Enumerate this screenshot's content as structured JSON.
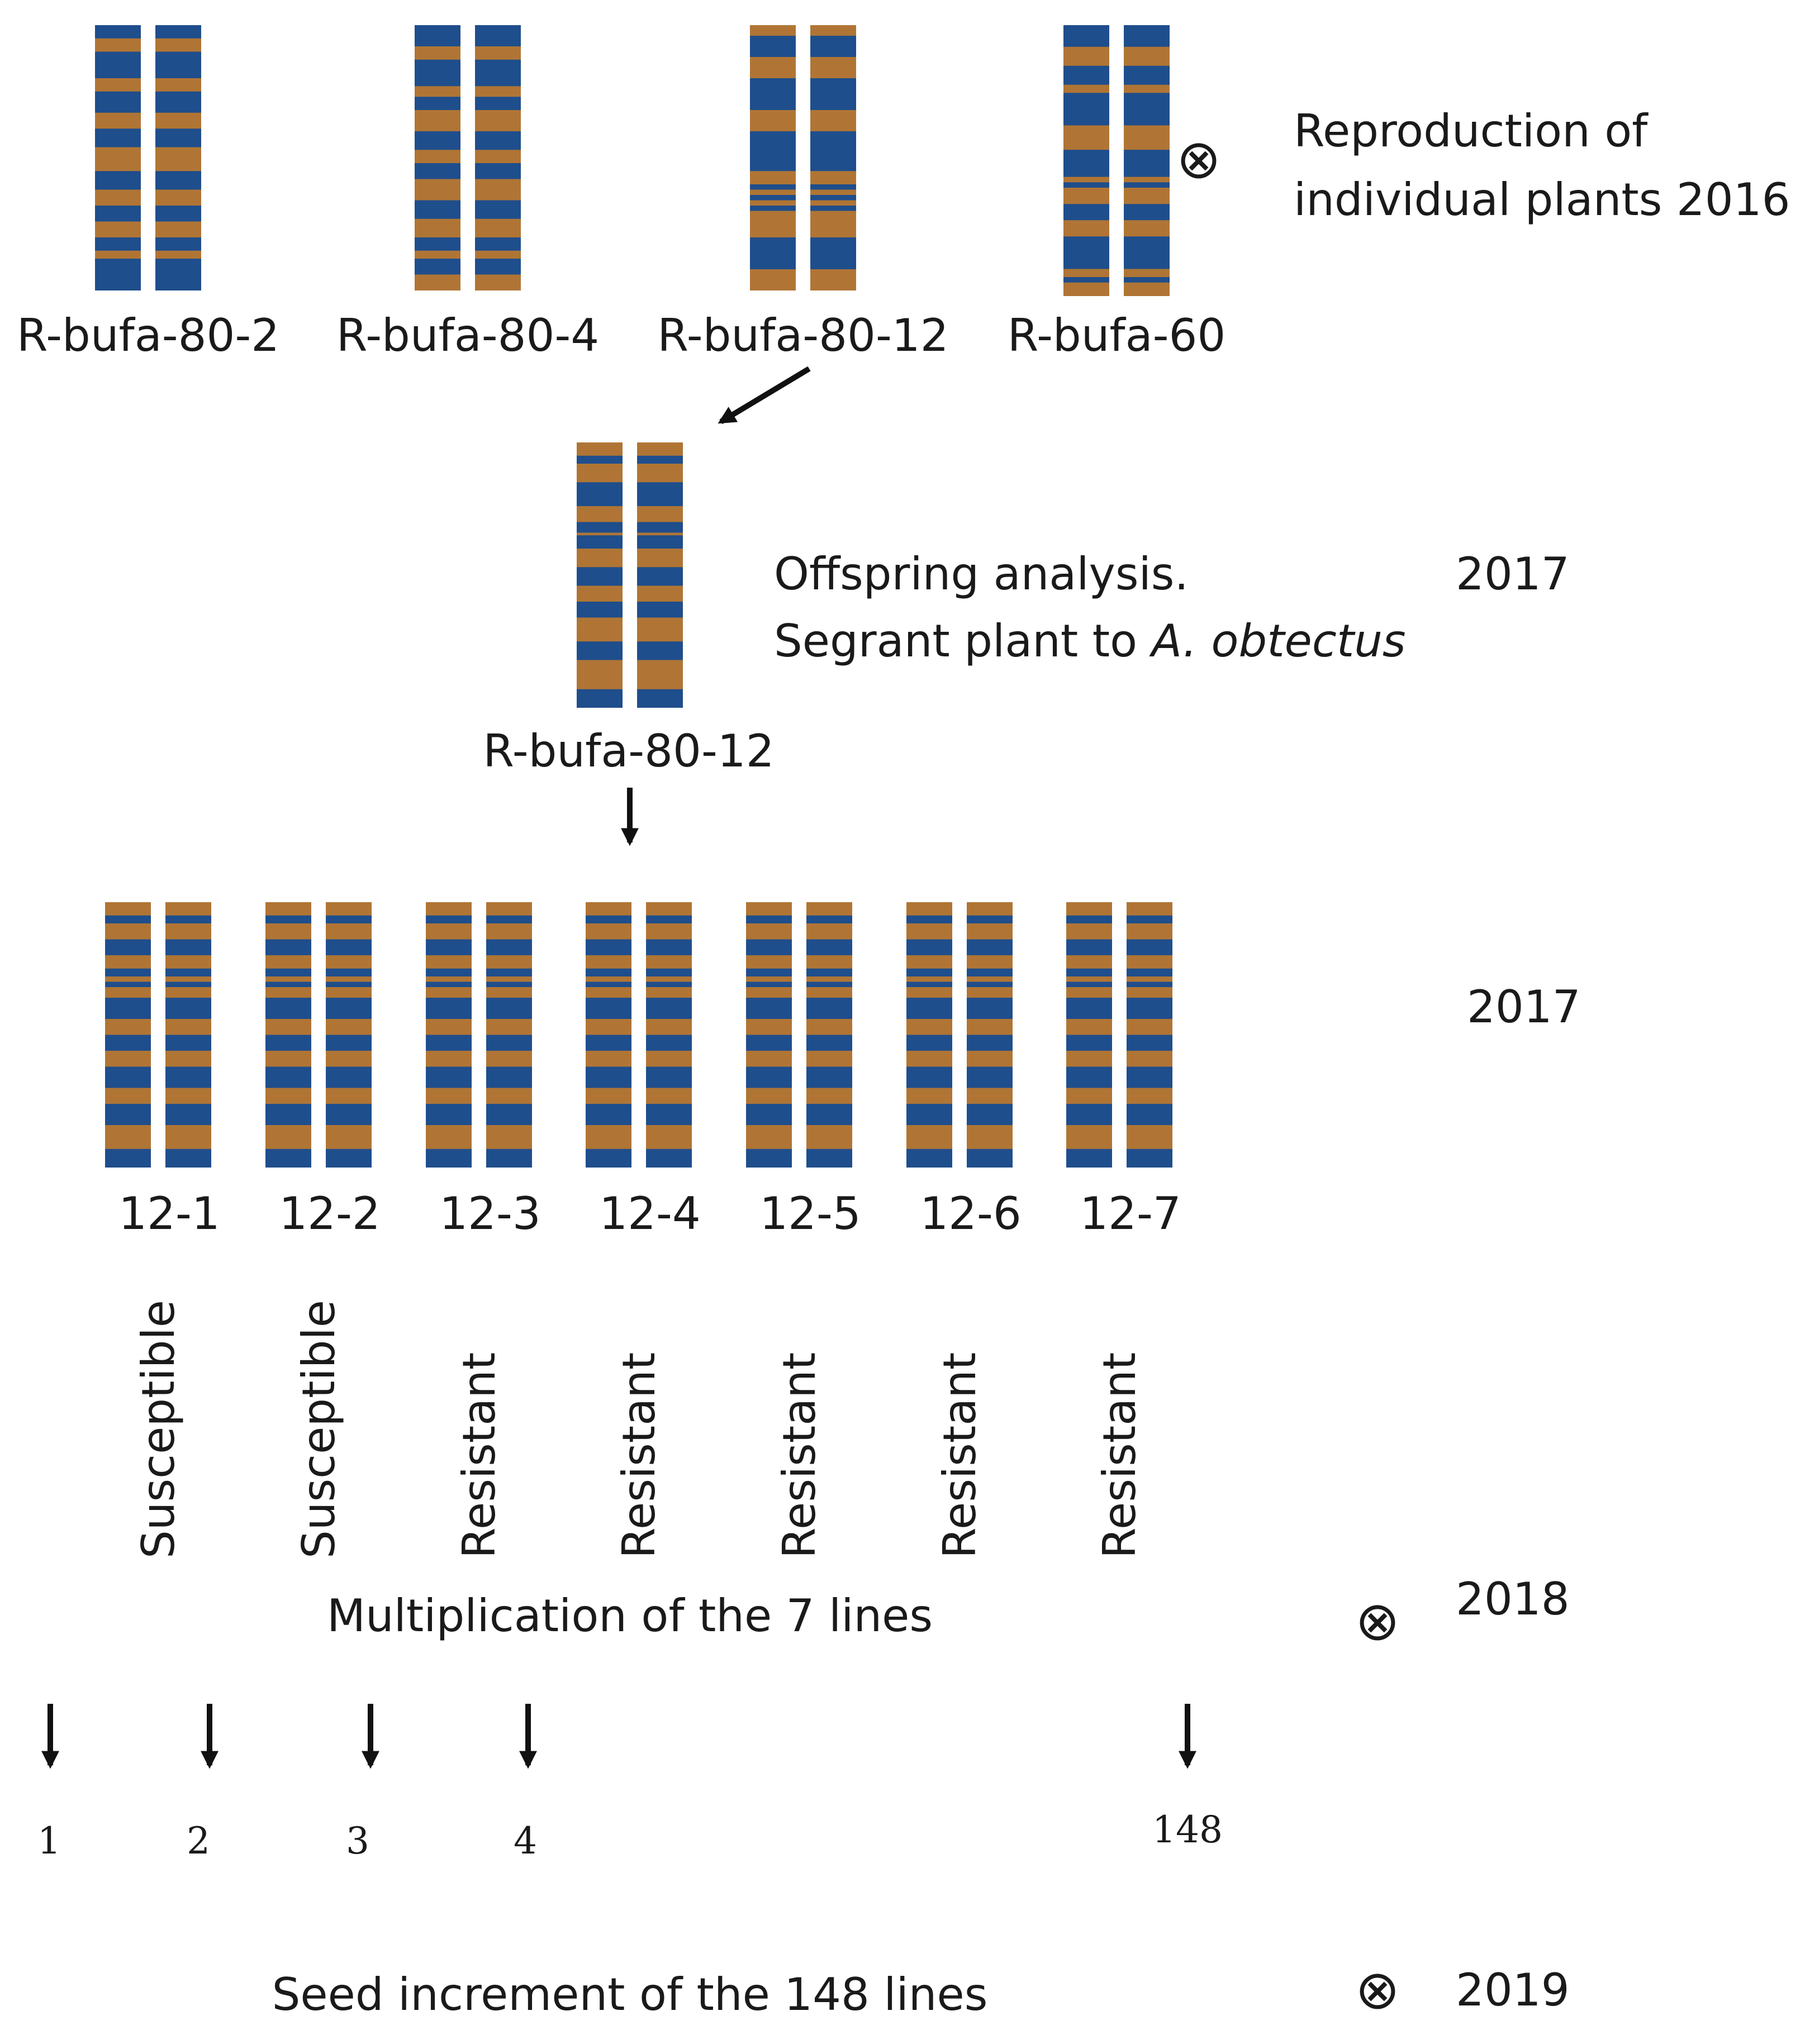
{
  "colors": {
    "chromosome_base": "#b07535",
    "chromosome_band": "#1f4e8c",
    "text": "#1a1a1a",
    "arrow": "#111111"
  },
  "row_2016": {
    "plants": [
      {
        "label": "R-bufa-80-2",
        "pattern": "A"
      },
      {
        "label": "R-bufa-80-4",
        "pattern": "B"
      },
      {
        "label": "R-bufa-80-12",
        "pattern": "C"
      },
      {
        "label": "R-bufa-60",
        "pattern": "D"
      }
    ],
    "self_symbol": "⊗",
    "caption_line1": "Reproduction  of",
    "caption_line2": "individual plants 2016"
  },
  "row_2017_offspring": {
    "plant_label": "R-bufa-80-12",
    "pattern": "E",
    "caption_line1": "Offspring analysis.",
    "caption_line2_prefix": "Segrant plant to ",
    "caption_line2_italic": "A. obtectus",
    "year": "2017"
  },
  "row_2017_lines": {
    "year": "2017",
    "lines": [
      {
        "label": "12-1",
        "phenotype": "Susceptible"
      },
      {
        "label": "12-2",
        "phenotype": "Susceptible"
      },
      {
        "label": "12-3",
        "phenotype": "Resistant"
      },
      {
        "label": "12-4",
        "phenotype": "Resistant"
      },
      {
        "label": "12-5",
        "phenotype": "Resistant"
      },
      {
        "label": "12-6",
        "phenotype": "Resistant"
      },
      {
        "label": "12-7",
        "phenotype": "Resistant"
      }
    ]
  },
  "row_2018": {
    "caption": "Multiplication of the 7 lines",
    "self_symbol": "⊗",
    "year": "2018",
    "progeny_numbers": [
      "1",
      "2",
      "3",
      "4",
      "148"
    ]
  },
  "row_2019": {
    "caption": "Seed increment of the 148 lines",
    "self_symbol": "⊗",
    "year": "2019"
  }
}
